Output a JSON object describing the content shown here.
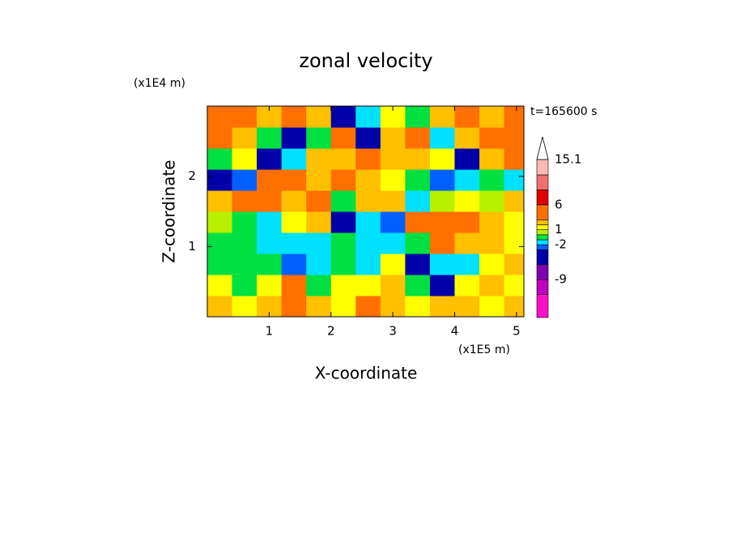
{
  "chart_data": {
    "type": "contour",
    "title": "zonal velocity",
    "time_label": "t=165600 s",
    "xlabel": "X-coordinate",
    "ylabel": "Z-coordinate",
    "x_unit": "(x1E5 m)",
    "y_unit": "(x1E4 m)",
    "xlim": [
      0,
      5.12
    ],
    "ylim": [
      0,
      3.0
    ],
    "xticks": [
      1,
      2,
      3,
      4,
      5
    ],
    "yticks": [
      1,
      2
    ],
    "x": [
      0.2,
      0.6,
      1.0,
      1.4,
      1.8,
      2.2,
      2.6,
      3.0,
      3.4,
      3.8,
      4.2,
      4.6,
      5.0
    ],
    "y": [
      0.15,
      0.45,
      0.75,
      1.05,
      1.35,
      1.65,
      1.95,
      2.25,
      2.55,
      2.85
    ],
    "z": [
      [
        2,
        1.5,
        2,
        4,
        2,
        1.5,
        3,
        2,
        1,
        2.5,
        2.5,
        1.5,
        2
      ],
      [
        1.5,
        -0.5,
        1.5,
        3,
        -1,
        1.5,
        1,
        2,
        -1,
        -5,
        1.5,
        2,
        1.5
      ],
      [
        -0.5,
        -0.5,
        -0.5,
        -3,
        -1.5,
        -1,
        -2,
        1,
        -4,
        -1.5,
        -2,
        1.5,
        2
      ],
      [
        -0.5,
        -0.5,
        -1.5,
        -2,
        -1.5,
        -1,
        -1.5,
        -2,
        -1,
        3,
        2,
        2,
        1.5
      ],
      [
        0.5,
        -1,
        -1.5,
        1,
        2,
        -4,
        -2,
        -3,
        4,
        5,
        4,
        2,
        1
      ],
      [
        2,
        3,
        4,
        2,
        3,
        -1,
        2,
        2,
        -2,
        0.5,
        1,
        0.5,
        2
      ],
      [
        -5,
        -3,
        4,
        5,
        2,
        4,
        2,
        1,
        -1,
        -3,
        -2,
        -1,
        -1.5
      ],
      [
        -1,
        1,
        -5,
        -2,
        2,
        2,
        4,
        2,
        2,
        1,
        -4,
        2,
        3
      ],
      [
        3,
        2,
        -1,
        -4,
        -1,
        3,
        -4,
        2,
        3,
        -2,
        2,
        3,
        4
      ],
      [
        4,
        5,
        2,
        3,
        2,
        -4,
        -2,
        1,
        -1,
        2,
        3,
        2,
        4
      ]
    ],
    "levels": [
      -12,
      -9,
      -6,
      -3,
      -2,
      -1,
      0,
      1,
      2,
      3,
      6,
      9,
      12,
      15.1
    ],
    "colors": [
      "#ff10c8",
      "#c000c0",
      "#8000b0",
      "#0000a8",
      "#0060ff",
      "#00e0ff",
      "#00e040",
      "#b8f000",
      "#ffff00",
      "#ffc000",
      "#ff7000",
      "#e00000",
      "#f07070",
      "#ffb8b8",
      "#ffffff"
    ],
    "clim": [
      -16.6,
      15.4
    ],
    "cbar_ticks": [
      15.1,
      6,
      1,
      -2,
      -9
    ]
  }
}
